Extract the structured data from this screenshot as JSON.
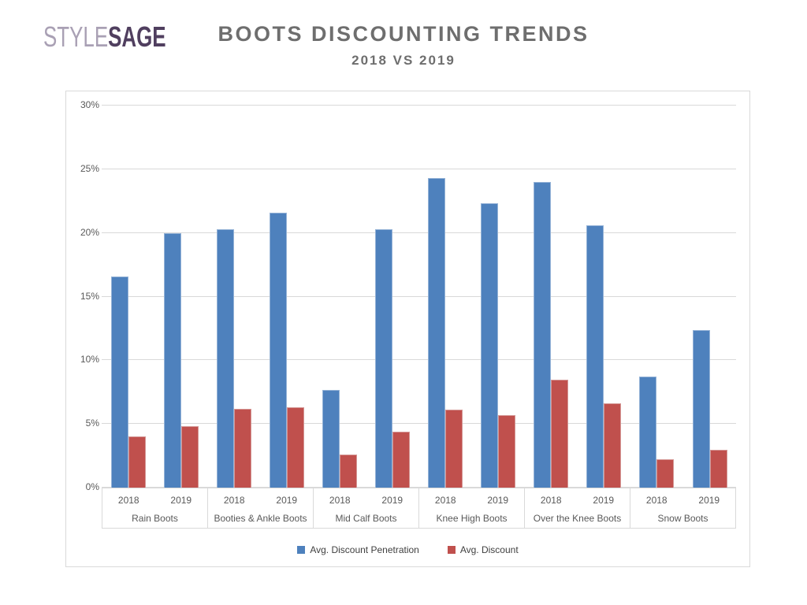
{
  "logo": {
    "style": "STYLE",
    "sage": "SAGE"
  },
  "header": {
    "title": "BOOTS DISCOUNTING TRENDS",
    "subtitle": "2018 VS 2019"
  },
  "colors": {
    "penetration_blue": "#4e81bd",
    "discount_red": "#c0504d",
    "gridline": "#d9d9d9",
    "axis_text": "#595959",
    "title_gray": "#6e6e6e",
    "logo_light_purple": "#a9a0b4",
    "logo_dark_purple": "#503f5f"
  },
  "chart_data": {
    "type": "bar",
    "title": "BOOTS DISCOUNTING TRENDS",
    "subtitle": "2018 VS 2019",
    "ylabel": "",
    "xlabel": "",
    "ylim": [
      0,
      30
    ],
    "ytick_labels": [
      "0%",
      "5%",
      "10%",
      "15%",
      "20%",
      "25%",
      "30%"
    ],
    "grid": true,
    "legend_position": "bottom",
    "year_labels": [
      "2018",
      "2019"
    ],
    "series": [
      {
        "name": "Avg. Discount Penetration",
        "color": "#4e81bd"
      },
      {
        "name": "Avg. Discount",
        "color": "#c0504d"
      }
    ],
    "groups": [
      {
        "category": "Rain Boots",
        "bars": [
          {
            "year": "2018",
            "penetration": 16.6,
            "discount": 4.0
          },
          {
            "year": "2019",
            "penetration": 20.0,
            "discount": 4.8
          }
        ]
      },
      {
        "category": "Booties & Ankle Boots",
        "bars": [
          {
            "year": "2018",
            "penetration": 20.3,
            "discount": 6.2
          },
          {
            "year": "2019",
            "penetration": 21.6,
            "discount": 6.3
          }
        ]
      },
      {
        "category": "Mid Calf Boots",
        "bars": [
          {
            "year": "2018",
            "penetration": 7.7,
            "discount": 2.6
          },
          {
            "year": "2019",
            "penetration": 20.3,
            "discount": 4.4
          }
        ]
      },
      {
        "category": "Knee High Boots",
        "bars": [
          {
            "year": "2018",
            "penetration": 24.3,
            "discount": 6.1
          },
          {
            "year": "2019",
            "penetration": 22.3,
            "discount": 5.7
          }
        ]
      },
      {
        "category": "Over the Knee Boots",
        "bars": [
          {
            "year": "2018",
            "penetration": 24.0,
            "discount": 8.5
          },
          {
            "year": "2019",
            "penetration": 20.6,
            "discount": 6.6
          }
        ]
      },
      {
        "category": "Snow Boots",
        "bars": [
          {
            "year": "2018",
            "penetration": 8.7,
            "discount": 2.2
          },
          {
            "year": "2019",
            "penetration": 12.4,
            "discount": 3.0
          }
        ]
      }
    ]
  }
}
